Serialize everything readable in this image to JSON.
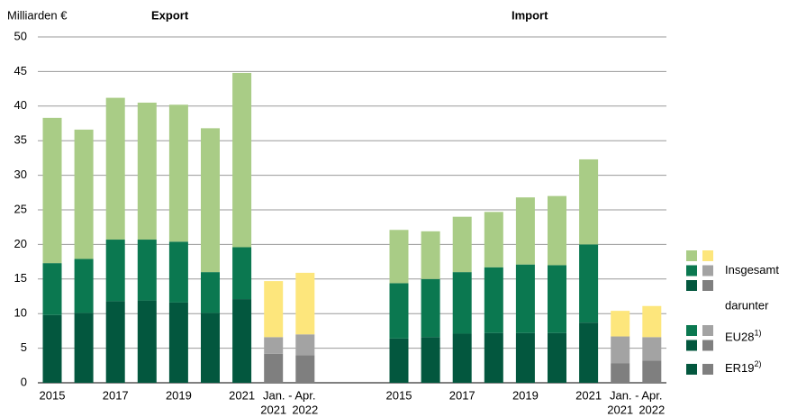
{
  "chart_data": {
    "type": "bar",
    "stacked": true,
    "y_label": "Milliarden €",
    "ylim": [
      0,
      50
    ],
    "yticks": [
      0,
      5,
      10,
      15,
      20,
      25,
      30,
      35,
      40,
      45,
      50
    ],
    "grid": true,
    "categories": [
      "2015",
      null,
      "2017",
      null,
      "2019",
      null,
      "2021"
    ],
    "period": {
      "label": "Jan. - Apr.",
      "categories": [
        "2021",
        "2022"
      ]
    },
    "series": [
      {
        "name": "ER19",
        "note": "2)",
        "color": "#03573e",
        "period_color": "#7f7f7f"
      },
      {
        "name": "EU28",
        "note": "1)",
        "color": "#0b7850",
        "period_color": "#a3a3a3"
      },
      {
        "name": "Insgesamt",
        "color": "#a9cc86",
        "period_color": "#fde67c"
      }
    ],
    "legend_note": "darunter",
    "groups": [
      {
        "title": "Export",
        "values": [
          [
            9.8,
            10.1,
            11.8,
            11.9,
            11.6,
            10.1,
            12.1
          ],
          [
            7.5,
            7.8,
            8.9,
            8.8,
            8.8,
            5.9,
            7.5
          ],
          [
            21.0,
            18.7,
            20.5,
            19.8,
            19.8,
            20.8,
            25.2
          ]
        ],
        "period_values": [
          [
            4.2,
            4.0
          ],
          [
            2.4,
            3.0
          ],
          [
            8.1,
            8.9
          ]
        ]
      },
      {
        "title": "Import",
        "values": [
          [
            6.4,
            6.6,
            7.1,
            7.2,
            7.2,
            7.2,
            8.7
          ],
          [
            8.0,
            8.4,
            8.9,
            9.5,
            9.9,
            9.8,
            11.3
          ],
          [
            7.7,
            6.9,
            8.0,
            8.0,
            9.7,
            10.0,
            12.3
          ]
        ],
        "period_values": [
          [
            2.8,
            3.2
          ],
          [
            3.9,
            3.4
          ],
          [
            3.7,
            4.5
          ]
        ]
      }
    ]
  }
}
